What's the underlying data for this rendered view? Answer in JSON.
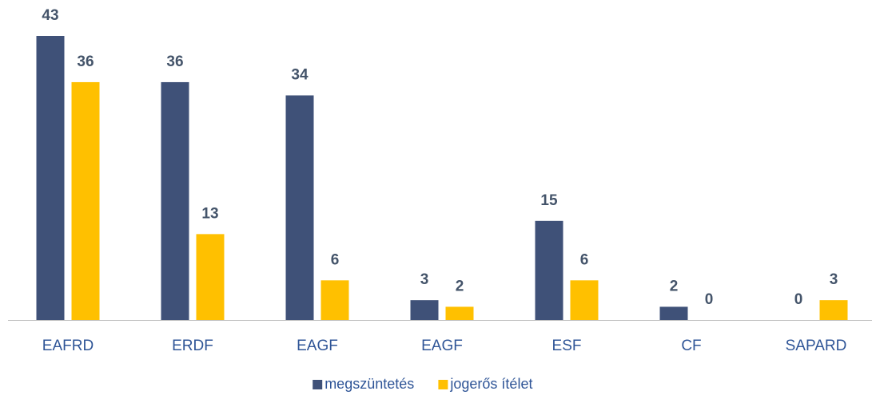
{
  "chart_data": {
    "type": "bar",
    "categories": [
      "EAFRD",
      "ERDF",
      "EAGF",
      "EAGF",
      "ESF",
      "CF",
      "SAPARD"
    ],
    "series": [
      {
        "name": "megszüntetés",
        "color": "#3f5178",
        "values": [
          43,
          36,
          34,
          3,
          15,
          2,
          0
        ]
      },
      {
        "name": "jogerős ítélet",
        "color": "#ffc000",
        "values": [
          36,
          13,
          6,
          2,
          6,
          0,
          3
        ]
      }
    ],
    "legend": "bottom",
    "grid": false
  }
}
